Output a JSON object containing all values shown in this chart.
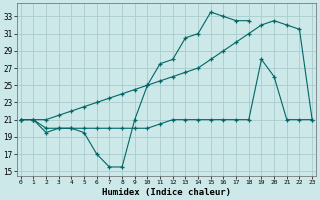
{
  "xlabel": "Humidex (Indice chaleur)",
  "background_color": "#cce8e8",
  "grid_color": "#aacccc",
  "line_color": "#006666",
  "x_ticks": [
    0,
    1,
    2,
    3,
    4,
    5,
    6,
    7,
    8,
    9,
    10,
    11,
    12,
    13,
    14,
    15,
    16,
    17,
    18,
    19,
    20,
    21,
    22,
    23
  ],
  "ylim": [
    14.5,
    34.5
  ],
  "yticks": [
    15,
    17,
    19,
    21,
    23,
    25,
    27,
    29,
    31,
    33
  ],
  "xlim": [
    -0.3,
    23.3
  ],
  "series1_x": [
    0,
    1,
    2,
    3,
    4,
    5,
    6,
    7,
    8,
    9,
    10,
    11,
    12,
    13,
    14,
    15,
    16,
    17,
    18
  ],
  "series1_y": [
    21,
    21,
    19.5,
    20,
    20,
    19.5,
    17,
    15.5,
    15.5,
    21,
    25,
    27.5,
    28,
    30.5,
    31,
    33.5,
    33,
    32.5,
    32.5
  ],
  "series2_x": [
    0,
    1,
    2,
    3,
    4,
    5,
    6,
    7,
    8,
    9,
    10,
    11,
    12,
    13,
    14,
    15,
    16,
    17,
    18,
    19,
    20,
    21,
    22,
    23
  ],
  "series2_y": [
    21,
    21,
    21,
    21.5,
    22,
    22.5,
    23,
    23.5,
    24,
    24.5,
    25,
    25.5,
    26,
    26.5,
    27,
    28,
    29,
    30,
    31,
    32,
    32.5,
    32,
    31.5,
    21
  ],
  "series3_x": [
    0,
    1,
    2,
    3,
    4,
    5,
    6,
    7,
    8,
    9,
    10,
    11,
    12,
    13,
    14,
    15,
    16,
    17,
    18,
    19,
    20,
    21,
    22,
    23
  ],
  "series3_y": [
    21,
    21,
    20,
    20,
    20,
    20,
    20,
    20,
    20,
    20,
    20,
    20.5,
    21,
    21,
    21,
    21,
    21,
    21,
    21,
    28,
    26,
    21,
    21,
    21
  ]
}
